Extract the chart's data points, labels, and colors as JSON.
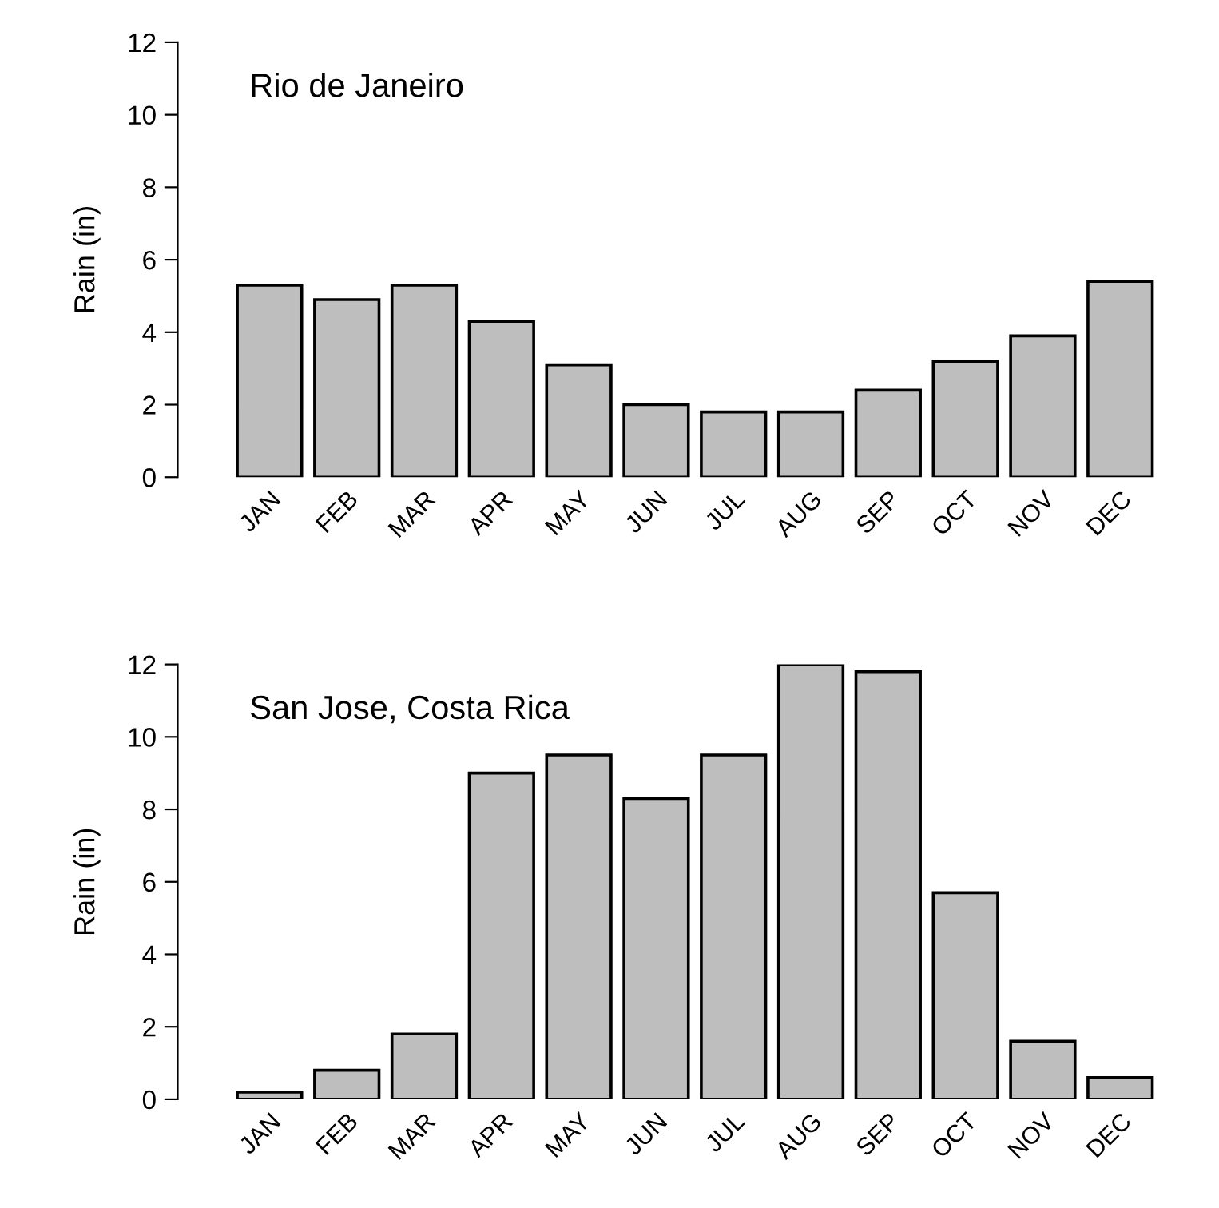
{
  "chart_data": [
    {
      "type": "bar",
      "title": "Rio de Janeiro",
      "ylabel": "Rain (in)",
      "categories": [
        "JAN",
        "FEB",
        "MAR",
        "APR",
        "MAY",
        "JUN",
        "JUL",
        "AUG",
        "SEP",
        "OCT",
        "NOV",
        "DEC"
      ],
      "values": [
        5.3,
        4.9,
        5.3,
        4.3,
        3.1,
        2.0,
        1.8,
        1.8,
        2.4,
        3.2,
        3.9,
        5.4
      ],
      "color": "#bebebe",
      "ylim": [
        0,
        12
      ],
      "yticks": [
        0,
        2,
        4,
        6,
        8,
        10,
        12
      ],
      "grid": false
    },
    {
      "type": "bar",
      "title": "San Jose, Costa Rica",
      "ylabel": "Rain (in)",
      "categories": [
        "JAN",
        "FEB",
        "MAR",
        "APR",
        "MAY",
        "JUN",
        "JUL",
        "AUG",
        "SEP",
        "OCT",
        "NOV",
        "DEC"
      ],
      "values": [
        0.2,
        0.8,
        1.8,
        9.0,
        9.5,
        8.3,
        9.5,
        12.0,
        11.8,
        5.7,
        1.6,
        0.6
      ],
      "color": "#bebebe",
      "ylim": [
        0,
        12
      ],
      "yticks": [
        0,
        2,
        4,
        6,
        8,
        10,
        12
      ],
      "grid": false
    }
  ]
}
